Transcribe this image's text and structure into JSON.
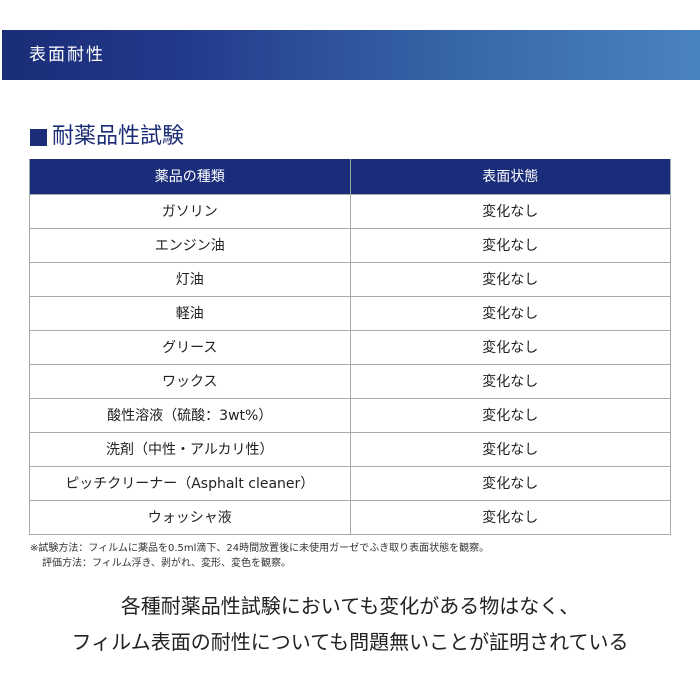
{
  "banner": {
    "title": "表面耐性"
  },
  "section": {
    "title": "耐薬品性試験"
  },
  "table": {
    "headers": [
      "薬品の種類",
      "表面状態"
    ],
    "rows": [
      [
        "ガソリン",
        "変化なし"
      ],
      [
        "エンジン油",
        "変化なし"
      ],
      [
        "灯油",
        "変化なし"
      ],
      [
        "軽油",
        "変化なし"
      ],
      [
        "グリース",
        "変化なし"
      ],
      [
        "ワックス",
        "変化なし"
      ],
      [
        "酸性溶液（硫酸：3wt%）",
        "変化なし"
      ],
      [
        "洗剤（中性・アルカリ性）",
        "変化なし"
      ],
      [
        "ピッチクリーナー（Asphalt cleaner）",
        "変化なし"
      ],
      [
        "ウォッシャ液",
        "変化なし"
      ]
    ]
  },
  "notes": [
    "※試験方法：フィルムに薬品を0.5ml滴下、24時間放置後に未使用ガーゼでふき取り表面状態を観察。",
    "評価方法：フィルム浮き、剥がれ、変形、変色を観察。"
  ],
  "conclusion": [
    "各種耐薬品性試験においても変化がある物はなく、",
    "フィルム表面の耐性についても問題無いことが証明されている"
  ]
}
